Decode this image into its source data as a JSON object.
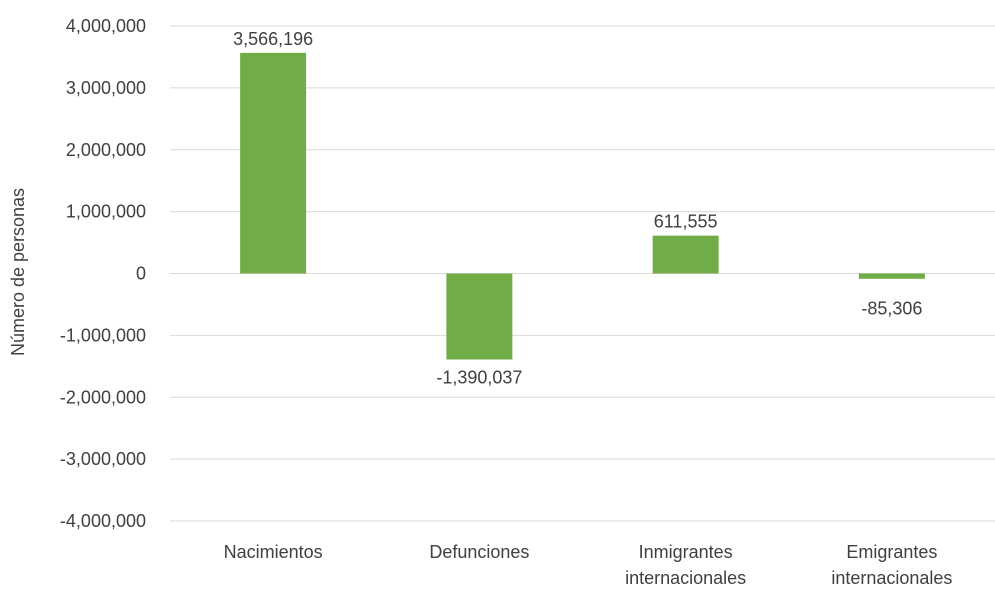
{
  "chart_data": {
    "type": "bar",
    "categories": [
      [
        "Nacimientos"
      ],
      [
        "Defunciones"
      ],
      [
        "Inmigrantes",
        "internacionales"
      ],
      [
        "Emigrantes",
        "internacionales"
      ]
    ],
    "series": [
      {
        "values": [
          3566196,
          -1390037,
          611555,
          -85306
        ],
        "data_labels": [
          "3,566,196",
          "-1,390,037",
          "611,555",
          "-85,306"
        ],
        "color": "#70ad47"
      }
    ],
    "title": "",
    "xlabel": "",
    "ylabel": "Número de personas",
    "ylim": [
      -4000000,
      4000000
    ],
    "yticks": [
      4000000,
      3000000,
      2000000,
      1000000,
      0,
      -1000000,
      -2000000,
      -3000000,
      -4000000
    ],
    "ytick_labels": [
      "4,000,000",
      "3,000,000",
      "2,000,000",
      "1,000,000",
      "0",
      "-1,000,000",
      "-2,000,000",
      "-3,000,000",
      "-4,000,000"
    ],
    "grid": true,
    "gridline_color": "#d9d9d9",
    "text_color": "#404040"
  }
}
